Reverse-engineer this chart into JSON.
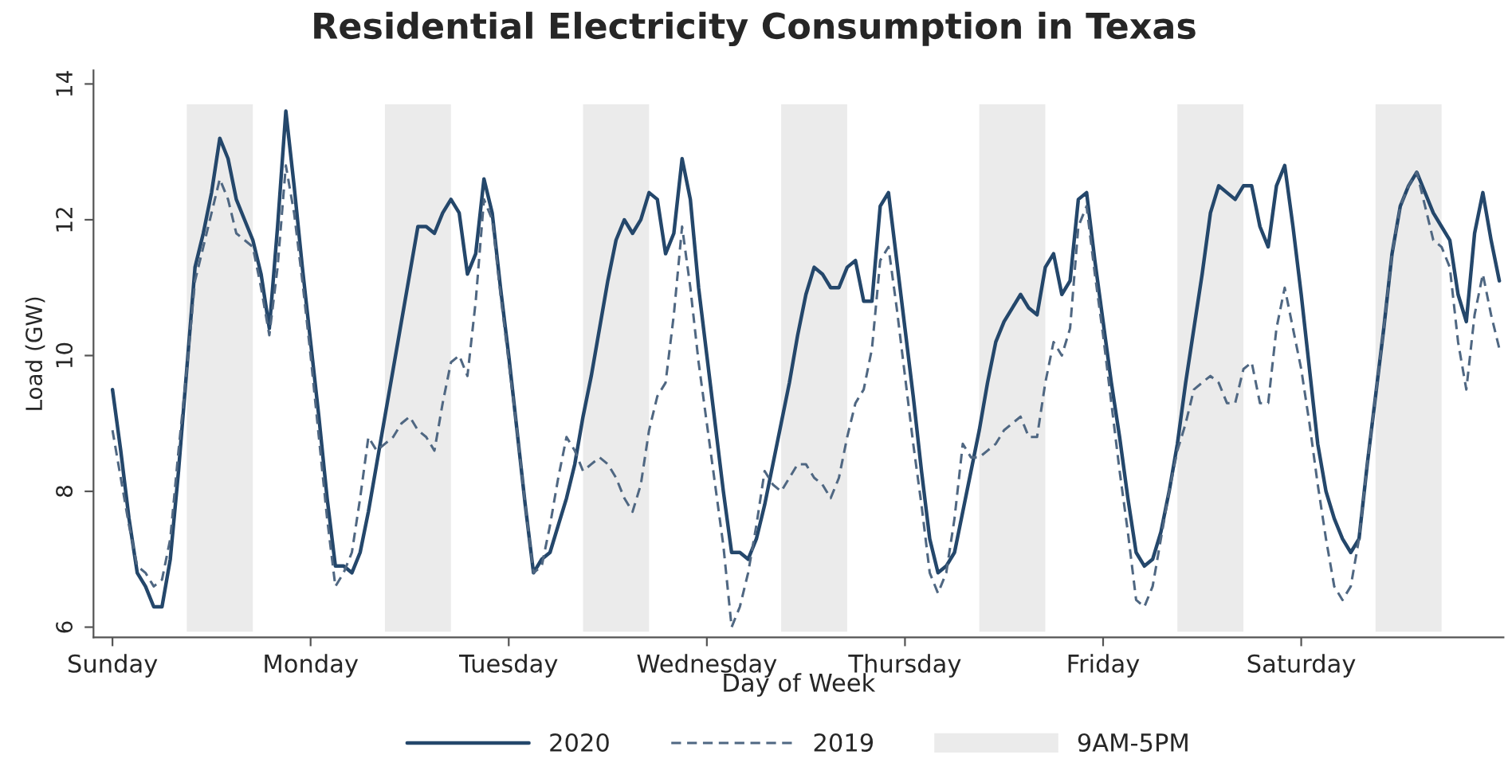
{
  "chart_data": {
    "type": "line",
    "title": "Residential Electricity Consumption in Texas",
    "xlabel": "Day of Week",
    "ylabel": "Load (GW)",
    "ylim": [
      5.85,
      14.2
    ],
    "yticks": [
      6,
      8,
      10,
      12,
      14
    ],
    "categories": [
      "Sunday",
      null,
      null,
      null,
      null,
      null,
      null,
      null,
      null,
      null,
      null,
      null,
      null,
      null,
      null,
      null,
      null,
      null,
      null,
      null,
      null,
      null,
      null,
      null,
      "Monday",
      null,
      null,
      null,
      null,
      null,
      null,
      null,
      null,
      null,
      null,
      null,
      null,
      null,
      null,
      null,
      null,
      null,
      null,
      null,
      null,
      null,
      null,
      null,
      "Tuesday",
      null,
      null,
      null,
      null,
      null,
      null,
      null,
      null,
      null,
      null,
      null,
      null,
      null,
      null,
      null,
      null,
      null,
      null,
      null,
      null,
      null,
      null,
      null,
      "Wednesday",
      null,
      null,
      null,
      null,
      null,
      null,
      null,
      null,
      null,
      null,
      null,
      null,
      null,
      null,
      null,
      null,
      null,
      null,
      null,
      null,
      null,
      null,
      null,
      "Thursday",
      null,
      null,
      null,
      null,
      null,
      null,
      null,
      null,
      null,
      null,
      null,
      null,
      null,
      null,
      null,
      null,
      null,
      null,
      null,
      null,
      null,
      null,
      null,
      "Friday",
      null,
      null,
      null,
      null,
      null,
      null,
      null,
      null,
      null,
      null,
      null,
      null,
      null,
      null,
      null,
      null,
      null,
      null,
      null,
      null,
      null,
      null,
      null,
      "Saturday",
      null,
      null,
      null,
      null,
      null,
      null,
      null,
      null,
      null,
      null,
      null,
      null,
      null,
      null,
      null,
      null,
      null,
      null,
      null,
      null,
      null,
      null,
      null,
      null
    ],
    "grid": false,
    "legend": "bottom",
    "annotations": [
      "9AM-5PM"
    ],
    "series": [
      {
        "name": "2020",
        "color": "#24476b",
        "line_style": "solid",
        "values": [
          9.5,
          8.6,
          7.6,
          6.8,
          6.6,
          6.3,
          6.3,
          7.0,
          8.3,
          9.8,
          11.3,
          11.8,
          12.4,
          13.2,
          12.9,
          12.3,
          12.0,
          11.7,
          11.2,
          10.4,
          11.9,
          13.6,
          12.5,
          11.3,
          10.2,
          9.1,
          7.9,
          6.9,
          6.9,
          6.8,
          7.1,
          7.7,
          8.4,
          9.1,
          9.8,
          10.5,
          11.2,
          11.9,
          11.9,
          11.8,
          12.1,
          12.3,
          12.1,
          11.2,
          11.5,
          12.6,
          12.1,
          11.0,
          10.0,
          8.9,
          7.8,
          6.8,
          7.0,
          7.1,
          7.5,
          7.9,
          8.4,
          9.1,
          9.7,
          10.4,
          11.1,
          11.7,
          12.0,
          11.8,
          12.0,
          12.4,
          12.3,
          11.5,
          11.8,
          12.9,
          12.3,
          11.0,
          10.0,
          9.0,
          8.0,
          7.1,
          7.1,
          7.0,
          7.3,
          7.8,
          8.4,
          9.0,
          9.6,
          10.3,
          10.9,
          11.3,
          11.2,
          11.0,
          11.0,
          11.3,
          11.4,
          10.8,
          10.8,
          12.2,
          12.4,
          11.4,
          10.4,
          9.4,
          8.3,
          7.3,
          6.8,
          6.9,
          7.1,
          7.7,
          8.3,
          8.9,
          9.6,
          10.2,
          10.5,
          10.7,
          10.9,
          10.7,
          10.6,
          11.3,
          11.5,
          10.9,
          11.1,
          12.3,
          12.4,
          11.4,
          10.5,
          9.6,
          8.8,
          7.9,
          7.1,
          6.9,
          7.0,
          7.4,
          8.0,
          8.7,
          9.6,
          10.4,
          11.2,
          12.1,
          12.5,
          12.4,
          12.3,
          12.5,
          12.5,
          11.9,
          11.6,
          12.5,
          12.8,
          11.9,
          10.9,
          9.8,
          8.7,
          8.0,
          7.6,
          7.3,
          7.1,
          7.3,
          8.4,
          9.4,
          10.4,
          11.5,
          12.2,
          12.5,
          12.7,
          12.4,
          12.1,
          11.9,
          11.7,
          10.9,
          10.5,
          11.8,
          12.4,
          11.7,
          11.1
        ]
      },
      {
        "name": "2019",
        "color": "#4f6782",
        "line_style": "dashed",
        "values": [
          8.9,
          8.2,
          7.5,
          6.9,
          6.8,
          6.6,
          6.7,
          7.3,
          8.6,
          9.8,
          11.1,
          11.6,
          12.1,
          12.6,
          12.3,
          11.8,
          11.7,
          11.6,
          11.0,
          10.3,
          11.3,
          12.8,
          12.1,
          11.1,
          10.0,
          8.8,
          7.6,
          6.6,
          6.8,
          7.1,
          7.9,
          8.8,
          8.6,
          8.7,
          8.8,
          9.0,
          9.1,
          8.9,
          8.8,
          8.6,
          9.3,
          9.9,
          10.0,
          9.7,
          10.8,
          12.3,
          12.0,
          10.9,
          9.9,
          8.9,
          7.8,
          6.8,
          6.9,
          7.5,
          8.2,
          8.8,
          8.6,
          8.3,
          8.4,
          8.5,
          8.4,
          8.2,
          7.9,
          7.7,
          8.1,
          8.9,
          9.4,
          9.6,
          10.6,
          11.9,
          11.0,
          9.9,
          9.0,
          8.1,
          7.2,
          6.0,
          6.3,
          6.8,
          7.5,
          8.3,
          8.1,
          8.0,
          8.2,
          8.4,
          8.4,
          8.2,
          8.1,
          7.9,
          8.2,
          8.8,
          9.3,
          9.5,
          10.1,
          11.4,
          11.6,
          10.7,
          9.7,
          8.7,
          7.8,
          6.8,
          6.5,
          6.8,
          7.6,
          8.7,
          8.5,
          8.5,
          8.6,
          8.7,
          8.9,
          9.0,
          9.1,
          8.8,
          8.8,
          9.6,
          10.2,
          10.0,
          10.4,
          11.9,
          12.2,
          11.2,
          10.3,
          9.3,
          8.3,
          7.4,
          6.4,
          6.3,
          6.6,
          7.3,
          8.0,
          8.6,
          9.0,
          9.5,
          9.6,
          9.7,
          9.6,
          9.3,
          9.3,
          9.8,
          9.9,
          9.3,
          9.3,
          10.4,
          11.0,
          10.4,
          9.8,
          9.0,
          8.1,
          7.3,
          6.6,
          6.4,
          6.6,
          7.3,
          8.4,
          9.4,
          10.4,
          11.5,
          12.2,
          12.5,
          12.7,
          12.2,
          11.7,
          11.6,
          11.3,
          10.2,
          9.5,
          10.6,
          11.2,
          10.6,
          10.1
        ]
      }
    ]
  }
}
